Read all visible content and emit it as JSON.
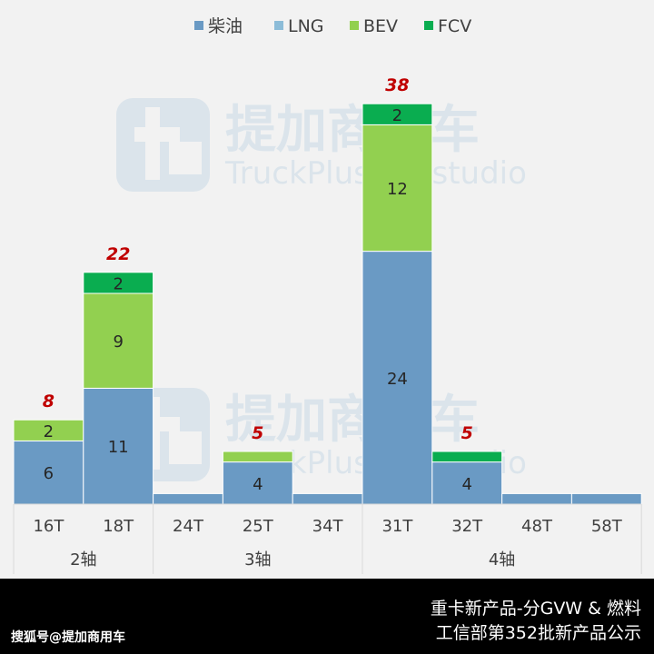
{
  "chart_data": {
    "type": "bar",
    "stacked": true,
    "title": "",
    "legend": {
      "position": "top",
      "entries": [
        "柴油",
        "LNG",
        "BEV",
        "FCV"
      ]
    },
    "categories": [
      "16T",
      "18T",
      "24T",
      "25T",
      "34T",
      "31T",
      "32T",
      "48T",
      "58T"
    ],
    "groups": [
      {
        "label": "2轴",
        "categories": [
          "16T",
          "18T"
        ]
      },
      {
        "label": "3轴",
        "categories": [
          "24T",
          "25T",
          "34T"
        ]
      },
      {
        "label": "4轴",
        "categories": [
          "31T",
          "32T",
          "48T",
          "58T"
        ]
      }
    ],
    "series": [
      {
        "name": "柴油",
        "color": "#6a9ac4",
        "values": [
          6,
          11,
          1,
          4,
          1,
          24,
          4,
          1,
          1
        ]
      },
      {
        "name": "LNG",
        "color": "#8cbcd8",
        "values": [
          0,
          0,
          0,
          0,
          0,
          0,
          0,
          0,
          0
        ]
      },
      {
        "name": "BEV",
        "color": "#92d050",
        "values": [
          2,
          9,
          0,
          1,
          0,
          12,
          0,
          0,
          0
        ]
      },
      {
        "name": "FCV",
        "color": "#0aad50",
        "values": [
          0,
          2,
          0,
          0,
          0,
          2,
          1,
          0,
          0
        ]
      }
    ],
    "segment_labels": [
      [
        "6",
        "",
        "2",
        ""
      ],
      [
        "11",
        "",
        "9",
        "2"
      ],
      [
        "",
        "",
        "",
        ""
      ],
      [
        "4",
        "",
        "",
        ""
      ],
      [
        "",
        "",
        "",
        ""
      ],
      [
        "24",
        "",
        "12",
        "2"
      ],
      [
        "4",
        "",
        "",
        ""
      ],
      [
        "",
        "",
        "",
        ""
      ],
      [
        "",
        "",
        "",
        ""
      ]
    ],
    "totals": [
      "8",
      "22",
      "",
      "5",
      "",
      "38",
      "5",
      "",
      ""
    ],
    "total_color": "#c00000",
    "ylim": [
      0,
      44
    ],
    "grid": false
  },
  "watermark": {
    "brand": "提加商用车",
    "sub": "TruckPlus CV studio"
  },
  "footer": {
    "line1": "重卡新产品-分GVW & 燃料",
    "line2": "工信部第352批新产品公示",
    "credit": "搜狐号@提加商用车"
  }
}
